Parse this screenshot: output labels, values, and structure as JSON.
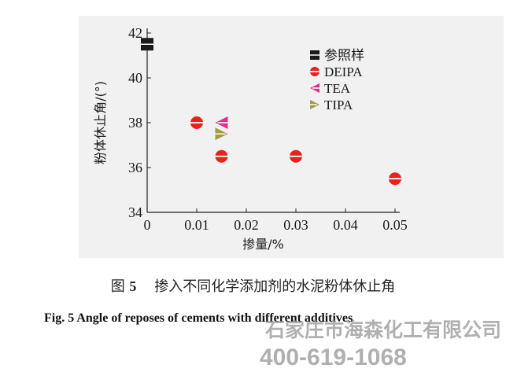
{
  "chart_data": {
    "type": "scatter",
    "ylabel": "粉体休止角/(°)",
    "xlabel": "掺量/%",
    "xlim": [
      0,
      0.05
    ],
    "ylim": [
      34,
      42
    ],
    "x_ticks": [
      "0",
      "0.01",
      "0.02",
      "0.03",
      "0.04",
      "0.05"
    ],
    "y_ticks": [
      "34",
      "36",
      "38",
      "40",
      "42"
    ],
    "legend_position": "top-right",
    "series": [
      {
        "name": "参照样",
        "marker": "square",
        "color": "#1a1a1a",
        "points": [
          {
            "x": 0,
            "y": 41.5
          }
        ]
      },
      {
        "name": "DEIPA",
        "marker": "circle",
        "color": "#e8201e",
        "points": [
          {
            "x": 0.01,
            "y": 38.0
          },
          {
            "x": 0.015,
            "y": 36.5
          },
          {
            "x": 0.03,
            "y": 36.5
          },
          {
            "x": 0.05,
            "y": 35.5
          }
        ]
      },
      {
        "name": "TEA",
        "marker": "triangle-left",
        "color": "#d9338f",
        "points": [
          {
            "x": 0.015,
            "y": 38.0
          }
        ]
      },
      {
        "name": "TIPA",
        "marker": "triangle-right",
        "color": "#a39a43",
        "points": [
          {
            "x": 0.015,
            "y": 37.5
          }
        ]
      }
    ]
  },
  "caption": {
    "cn_prefix": "图",
    "cn_num": "5",
    "cn_text": "掺入不同化学添加剂的水泥粉体休止角",
    "en_text": "Fig. 5    Angle of reposes of cements with different additives"
  },
  "watermark": {
    "company": "石家庄市海森化工有限公司",
    "phone": "400-619-1068"
  }
}
